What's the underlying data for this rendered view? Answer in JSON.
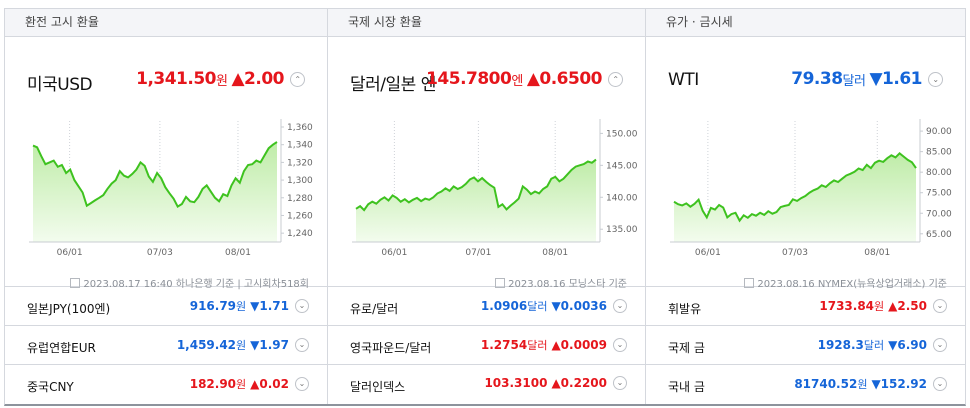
{
  "columns": [
    {
      "header": "환전 고시 환율",
      "main": {
        "name": "미국USD",
        "value": "1,341.50",
        "unit": "원",
        "change": "▲2.00",
        "direction": "up",
        "toggle": "⌃"
      },
      "source": "2023.08.17 16:40 하나은행 기준 | 고시회차518회",
      "rows": [
        {
          "name": "일본JPY(100엔)",
          "value": "916.79",
          "unit": "원",
          "change": "▼1.71",
          "direction": "down",
          "toggle": "⌄"
        },
        {
          "name": "유럽연합EUR",
          "value": "1,459.42",
          "unit": "원",
          "change": "▼1.97",
          "direction": "down",
          "toggle": "⌄"
        },
        {
          "name": "중국CNY",
          "value": "182.90",
          "unit": "원",
          "change": "▲0.02",
          "direction": "up",
          "toggle": "⌄"
        }
      ]
    },
    {
      "header": "국제 시장 환율",
      "main": {
        "name": "달러/일본 엔",
        "value": "145.7800",
        "unit": "엔",
        "change": "▲0.6500",
        "direction": "up",
        "toggle": "⌃"
      },
      "source": "2023.08.16 모닝스타 기준",
      "rows": [
        {
          "name": "유로/달러",
          "value": "1.0906",
          "unit": "달러",
          "change": "▼0.0036",
          "direction": "down",
          "toggle": "⌄"
        },
        {
          "name": "영국파운드/달러",
          "value": "1.2754",
          "unit": "달러",
          "change": "▲0.0009",
          "direction": "up",
          "toggle": "⌄"
        },
        {
          "name": "달러인덱스",
          "value": "103.3100",
          "unit": "",
          "change": "▲0.2200",
          "direction": "up",
          "toggle": "⌄"
        }
      ]
    },
    {
      "header": "유가 · 금시세",
      "main": {
        "name": "WTI",
        "value": "79.38",
        "unit": "달러",
        "change": "▼1.61",
        "direction": "down",
        "toggle": "⌄"
      },
      "source": "2023.08.16 NYMEX(뉴욕상업거래소) 기준",
      "rows": [
        {
          "name": "휘발유",
          "value": "1733.84",
          "unit": "원",
          "change": "▲2.50",
          "direction": "up",
          "toggle": "⌄"
        },
        {
          "name": "국제 금",
          "value": "1928.3",
          "unit": "달러",
          "change": "▼6.90",
          "direction": "down",
          "toggle": "⌄"
        },
        {
          "name": "국내 금",
          "value": "81740.52",
          "unit": "원",
          "change": "▼152.92",
          "direction": "down",
          "toggle": "⌄"
        }
      ]
    }
  ],
  "colors": {
    "up": "#e5161c",
    "down": "#1565d8",
    "line": "#3ec21f",
    "fill_top": "#bfeca8",
    "fill_bottom": "#f3fcee"
  },
  "chart_data": [
    {
      "type": "area",
      "x_ticks": [
        "06/01",
        "07/03",
        "08/01"
      ],
      "x_tick_pos": [
        0.15,
        0.52,
        0.84
      ],
      "ylim": [
        1230,
        1360
      ],
      "y_ticks": [
        1240,
        1260,
        1280,
        1300,
        1320,
        1340,
        1360
      ],
      "y_tick_labels": [
        "1,240",
        "1,260",
        "1,280",
        "1,300",
        "1,320",
        "1,340",
        "1,360"
      ],
      "values": [
        1339,
        1337,
        1327,
        1318,
        1320,
        1322,
        1315,
        1317,
        1308,
        1312,
        1300,
        1293,
        1286,
        1271,
        1274,
        1277,
        1280,
        1283,
        1290,
        1296,
        1300,
        1310,
        1305,
        1303,
        1307,
        1312,
        1320,
        1316,
        1304,
        1298,
        1308,
        1302,
        1292,
        1285,
        1279,
        1270,
        1273,
        1281,
        1276,
        1275,
        1281,
        1290,
        1294,
        1287,
        1280,
        1276,
        1284,
        1282,
        1294,
        1302,
        1297,
        1310,
        1317,
        1318,
        1322,
        1320,
        1328,
        1336,
        1340,
        1343
      ]
    },
    {
      "type": "area",
      "x_ticks": [
        "06/01",
        "07/01",
        "08/01"
      ],
      "x_tick_pos": [
        0.16,
        0.51,
        0.83
      ],
      "ylim": [
        133,
        151
      ],
      "y_ticks": [
        135,
        140,
        145,
        150
      ],
      "y_tick_labels": [
        "135.00",
        "140.00",
        "145.00",
        "150.00"
      ],
      "values": [
        138.2,
        138.6,
        138.0,
        138.9,
        139.3,
        139.0,
        139.6,
        140.0,
        139.5,
        140.3,
        139.9,
        139.3,
        139.7,
        139.2,
        139.6,
        139.9,
        139.4,
        139.8,
        139.6,
        140.0,
        140.6,
        140.9,
        141.4,
        141.0,
        141.7,
        141.3,
        141.6,
        142.1,
        142.8,
        143.1,
        142.5,
        143.0,
        142.4,
        141.9,
        141.5,
        138.5,
        138.9,
        138.1,
        138.7,
        139.2,
        139.8,
        141.7,
        141.2,
        140.5,
        140.9,
        140.6,
        141.3,
        141.7,
        142.9,
        143.2,
        142.5,
        142.9,
        143.6,
        144.3,
        144.8,
        145.0,
        145.2,
        145.6,
        145.4,
        145.9
      ]
    },
    {
      "type": "area",
      "x_ticks": [
        "06/01",
        "07/03",
        "08/01"
      ],
      "x_tick_pos": [
        0.14,
        0.5,
        0.84
      ],
      "ylim": [
        63,
        91
      ],
      "y_ticks": [
        65,
        70,
        75,
        80,
        85,
        90
      ],
      "y_tick_labels": [
        "65.00",
        "70.00",
        "75.00",
        "80.00",
        "85.00",
        "90.00"
      ],
      "values": [
        72.8,
        72.2,
        71.9,
        72.4,
        71.6,
        72.3,
        73.3,
        70.6,
        69.0,
        71.3,
        70.9,
        72.0,
        71.4,
        69.0,
        69.8,
        70.1,
        68.2,
        69.5,
        68.9,
        69.8,
        69.4,
        70.1,
        69.6,
        70.5,
        69.9,
        70.3,
        71.5,
        71.8,
        72.0,
        73.4,
        73.0,
        73.7,
        74.2,
        75.0,
        75.6,
        76.0,
        76.8,
        76.4,
        77.3,
        78.0,
        77.6,
        78.4,
        79.2,
        79.6,
        80.1,
        80.9,
        80.5,
        81.8,
        81.0,
        82.3,
        82.8,
        82.5,
        83.4,
        84.1,
        83.6,
        84.6,
        83.8,
        83.0,
        82.4,
        81.0
      ]
    }
  ]
}
